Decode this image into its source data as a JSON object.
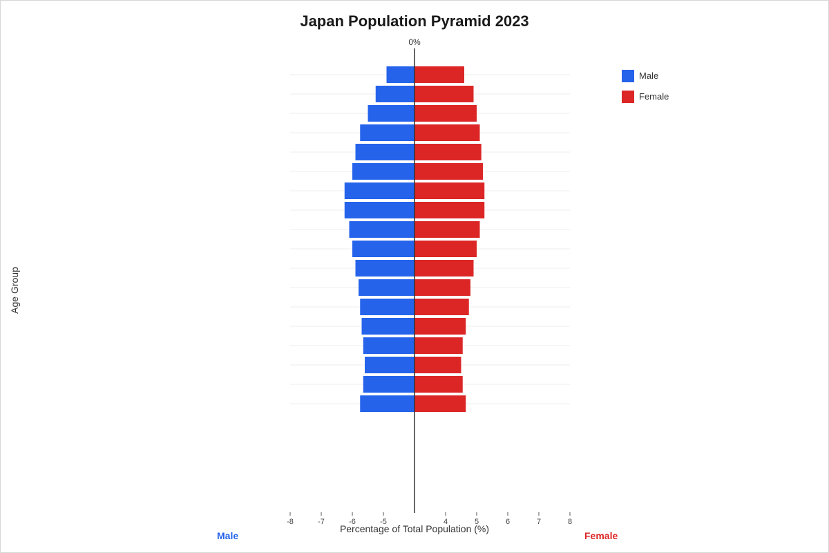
{
  "chart_data": {
    "type": "bar",
    "title": "Japan Population Pyramid 2023",
    "xlabel": "Percentage of Total Population (%)",
    "ylabel": "Age Group",
    "center_label": "0%",
    "x_tick_labels_left": [
      "-8",
      "-7",
      "-6",
      "-5"
    ],
    "x_tick_labels_right": [
      "4",
      "5",
      "6",
      "7",
      "8"
    ],
    "side_labels": {
      "left": "Male",
      "right": "Female"
    },
    "legend_position": "top-right",
    "grid": true,
    "series": [
      {
        "name": "Male",
        "color": "#2563eb",
        "values": [
          -0.9,
          -1.25,
          -1.5,
          -1.75,
          -1.9,
          -2.0,
          -2.25,
          -2.25,
          -2.1,
          -2.0,
          -1.9,
          -1.8,
          -1.75,
          -1.7,
          -1.65,
          -1.6,
          -1.65,
          -1.75
        ]
      },
      {
        "name": "Female",
        "color": "#dc2626",
        "values": [
          1.6,
          1.9,
          2.0,
          2.1,
          2.15,
          2.2,
          2.25,
          2.25,
          2.1,
          2.0,
          1.9,
          1.8,
          1.75,
          1.65,
          1.55,
          1.5,
          1.55,
          1.65
        ]
      }
    ]
  }
}
